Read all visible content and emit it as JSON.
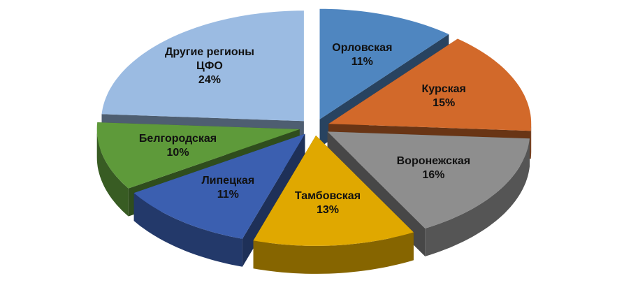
{
  "chart_data": {
    "type": "pie3d",
    "categories": [
      "Орловская",
      "Курская",
      "Воронежская",
      "Тамбовская",
      "Липецкая",
      "Белгородская",
      "Другие регионы ЦФО"
    ],
    "values": [
      11,
      15,
      16,
      13,
      11,
      10,
      24
    ],
    "value_labels": [
      "11%",
      "15%",
      "16%",
      "13%",
      "11%",
      "10%",
      "24%"
    ],
    "colors": [
      "#4f86c0",
      "#d2692a",
      "#8e8e8e",
      "#e0a800",
      "#3b5fb0",
      "#5e9a3a",
      "#9bbbe2"
    ]
  }
}
